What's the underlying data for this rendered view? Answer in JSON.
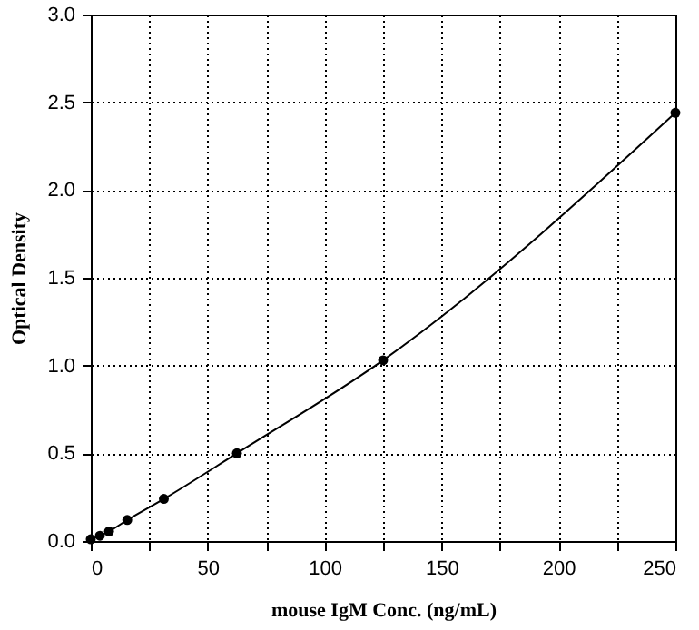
{
  "chart_data": {
    "type": "line",
    "xlabel": "mouse IgM Conc. (ng/mL)",
    "ylabel": "Optical Density",
    "x": [
      0,
      3.9,
      7.8,
      15.6,
      31.25,
      62.5,
      125,
      250
    ],
    "series": [
      {
        "color": "#000000",
        "values": [
          0.01,
          0.03,
          0.055,
          0.12,
          0.24,
          0.5,
          1.03,
          2.44
        ]
      }
    ],
    "xlim": [
      0,
      250
    ],
    "xticks": [
      0,
      {
        "value": 25,
        "label": null
      },
      50,
      {
        "value": 75,
        "label": null
      },
      100,
      {
        "value": 125,
        "label": null
      },
      150,
      {
        "value": 175,
        "label": null
      },
      200,
      {
        "value": 225,
        "label": null
      },
      250
    ],
    "ylim": [
      0,
      3
    ],
    "yticks": [
      {
        "value": 0,
        "label": "0.0"
      },
      {
        "value": 0.5,
        "label": "0.5"
      },
      {
        "value": 1,
        "label": "1.0"
      },
      {
        "value": 1.5,
        "label": "1.5"
      },
      {
        "value": 2,
        "label": "2.0"
      },
      {
        "value": 2.5,
        "label": "2.5"
      },
      {
        "value": 3,
        "label": "3.0"
      }
    ],
    "grid": true,
    "marker": "circle",
    "line_style": "solid"
  }
}
